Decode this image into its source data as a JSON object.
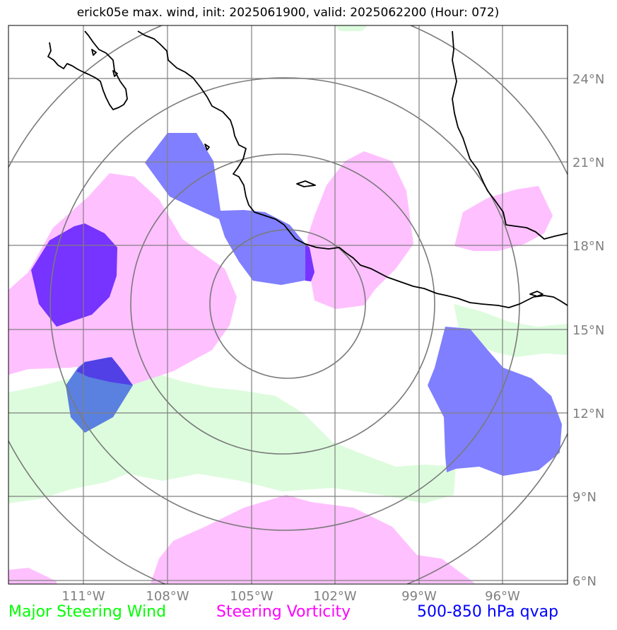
{
  "title": "erick05e max. wind, init: 2025061900, valid: 2025062200 (Hour: 072)",
  "legend": [
    {
      "label": "Major Steering Wind",
      "color": "#00ff00"
    },
    {
      "label": "Steering Vorticity",
      "color": "#ff00ff"
    },
    {
      "label": "500-850 hPa qvap",
      "color": "#0000ff"
    }
  ],
  "lat_labels": [
    "24°N",
    "21°N",
    "18°N",
    "15°N",
    "12°N",
    "9°N",
    "6°N"
  ],
  "lon_labels": [
    "111°W",
    "108°W",
    "105°W",
    "102°W",
    "99°W",
    "96°W"
  ],
  "fill_colors": {
    "steering_wind": "#ddfcdd",
    "steering_vorticity": "#ffc0ff",
    "qvap": "#7f7fff",
    "overlap_dark": "#7733ff",
    "overlap_wind_qvap": "#5a80e0"
  }
}
